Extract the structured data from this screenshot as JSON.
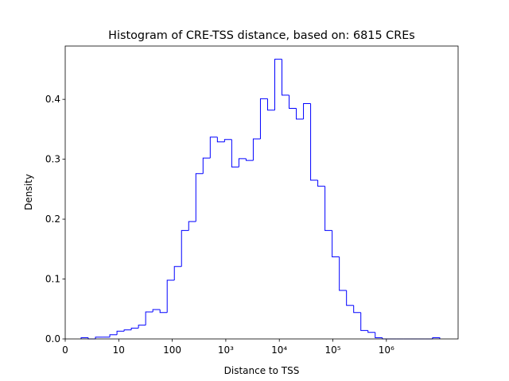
{
  "chart_data": {
    "type": "histogram",
    "title": "Histogram of CRE-TSS distance, based on: 6815 CREs",
    "xlabel": "Distance to TSS",
    "ylabel": "Density",
    "color": "#0000ff",
    "bins": [
      0.297,
      0.431,
      0.565,
      0.699,
      0.833,
      0.967,
      1.101,
      1.235,
      1.369,
      1.503,
      1.637,
      1.771,
      1.905,
      2.039,
      2.173,
      2.307,
      2.441,
      2.575,
      2.709,
      2.843,
      2.977,
      3.111,
      3.245,
      3.379,
      3.513,
      3.647,
      3.781,
      3.915,
      4.049,
      4.183,
      4.317,
      4.451,
      4.585,
      4.719,
      4.853,
      4.987,
      5.121,
      5.255,
      5.389,
      5.523,
      5.657,
      5.791,
      5.925,
      6.059,
      6.193,
      6.327,
      6.461,
      6.595,
      6.729,
      6.863,
      6.997
    ],
    "values": [
      0.002,
      0,
      0.003,
      0.003,
      0.007,
      0.013,
      0.015,
      0.018,
      0.023,
      0.045,
      0.049,
      0.044,
      0.098,
      0.121,
      0.181,
      0.196,
      0.276,
      0.302,
      0.337,
      0.329,
      0.333,
      0.287,
      0.301,
      0.298,
      0.334,
      0.401,
      0.382,
      0.467,
      0.407,
      0.385,
      0.367,
      0.393,
      0.265,
      0.255,
      0.181,
      0.137,
      0.081,
      0.056,
      0.044,
      0.014,
      0.011,
      0.002,
      0,
      0,
      0,
      0,
      0,
      0,
      0,
      0.002
    ],
    "xlim": [
      0,
      7.34
    ],
    "xticks": [
      0,
      {
        "value": 1,
        "label": "10"
      },
      {
        "value": 2,
        "label": "100"
      },
      {
        "value": 3,
        "label": "10³"
      },
      {
        "value": 4,
        "label": "10⁴"
      },
      {
        "value": 5,
        "label": "10⁵"
      },
      {
        "value": 6,
        "label": "10⁶"
      }
    ],
    "ylim": [
      0,
      0.489
    ],
    "yticks": [
      {
        "value": 0,
        "label": "0.0"
      },
      0.1,
      0.2,
      0.3,
      0.4
    ]
  }
}
